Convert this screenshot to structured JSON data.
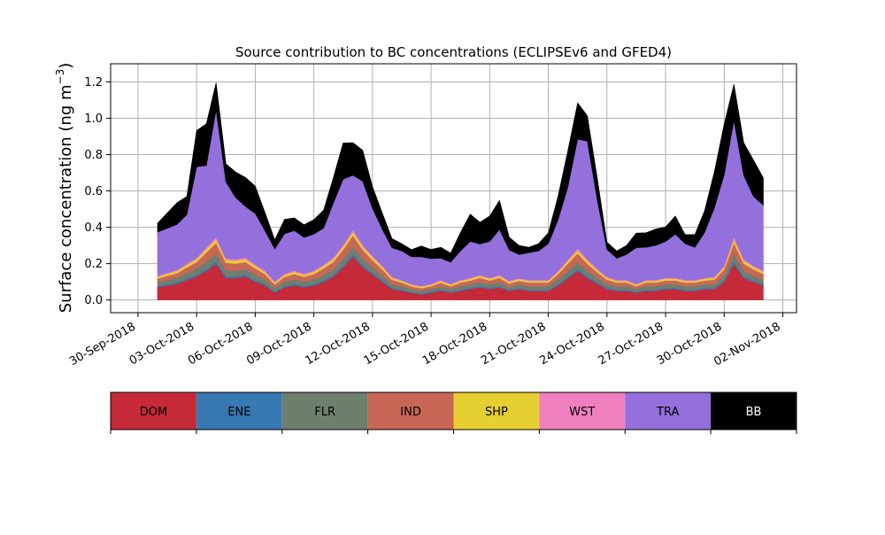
{
  "chart_data": {
    "type": "area",
    "title": "Source contribution to BC concentrations (ECLIPSEv6 and GFED4)",
    "xlabel": "",
    "ylabel": "Surface concentration (ng m",
    "ylabel_superscript": "−3",
    "ylabel_close": ")",
    "ylim": [
      -0.07,
      1.3
    ],
    "xlim": [
      -2.4,
      32.7
    ],
    "x_ticks": [
      {
        "value": -1,
        "label": "30-Sep-2018"
      },
      {
        "value": 2,
        "label": "03-Oct-2018"
      },
      {
        "value": 5,
        "label": "06-Oct-2018"
      },
      {
        "value": 8,
        "label": "09-Oct-2018"
      },
      {
        "value": 11,
        "label": "12-Oct-2018"
      },
      {
        "value": 14,
        "label": "15-Oct-2018"
      },
      {
        "value": 17,
        "label": "18-Oct-2018"
      },
      {
        "value": 20,
        "label": "21-Oct-2018"
      },
      {
        "value": 23,
        "label": "24-Oct-2018"
      },
      {
        "value": 26,
        "label": "27-Oct-2018"
      },
      {
        "value": 29,
        "label": "30-Oct-2018"
      },
      {
        "value": 32,
        "label": "02-Nov-2018"
      }
    ],
    "y_ticks": [
      {
        "value": 0.0,
        "label": "0.0"
      },
      {
        "value": 0.2,
        "label": "0.2"
      },
      {
        "value": 0.4,
        "label": "0.4"
      },
      {
        "value": 0.6,
        "label": "0.6"
      },
      {
        "value": 0.8,
        "label": "0.8"
      },
      {
        "value": 1.0,
        "label": "1.0"
      },
      {
        "value": 1.2,
        "label": "1.2"
      }
    ],
    "grid": true,
    "x_unit": "days since 01-Oct-2018",
    "x": [
      0,
      1,
      1.5,
      2,
      2.5,
      3,
      3.5,
      4,
      4.5,
      5,
      5.5,
      6,
      6.5,
      7,
      7.5,
      8,
      8.5,
      9,
      9.5,
      10,
      10.5,
      11,
      11.5,
      12,
      12.5,
      13,
      13.5,
      14,
      14.5,
      15,
      15.5,
      16,
      16.5,
      17,
      17.5,
      18,
      18.5,
      19,
      19.5,
      20,
      20.5,
      21,
      21.5,
      22,
      22.5,
      23,
      23.5,
      24,
      24.5,
      25,
      25.5,
      26,
      26.5,
      27,
      27.5,
      28,
      28.5,
      29,
      29.5,
      30,
      30.5,
      31
    ],
    "series": [
      {
        "name": "DOM",
        "color": "#c62a38",
        "values": [
          0.07,
          0.09,
          0.11,
          0.13,
          0.16,
          0.2,
          0.12,
          0.12,
          0.13,
          0.1,
          0.08,
          0.04,
          0.07,
          0.08,
          0.07,
          0.08,
          0.1,
          0.13,
          0.18,
          0.24,
          0.18,
          0.14,
          0.1,
          0.06,
          0.05,
          0.04,
          0.03,
          0.04,
          0.05,
          0.04,
          0.05,
          0.06,
          0.07,
          0.06,
          0.07,
          0.05,
          0.06,
          0.05,
          0.05,
          0.05,
          0.08,
          0.12,
          0.16,
          0.12,
          0.09,
          0.06,
          0.05,
          0.05,
          0.04,
          0.05,
          0.05,
          0.06,
          0.06,
          0.05,
          0.05,
          0.06,
          0.06,
          0.1,
          0.2,
          0.12,
          0.1,
          0.08
        ]
      },
      {
        "name": "ENE",
        "color": "#3878b3",
        "values": [
          0.008,
          0.008,
          0.009,
          0.01,
          0.012,
          0.014,
          0.01,
          0.01,
          0.01,
          0.009,
          0.008,
          0.006,
          0.007,
          0.008,
          0.007,
          0.008,
          0.009,
          0.01,
          0.012,
          0.014,
          0.012,
          0.01,
          0.009,
          0.007,
          0.006,
          0.005,
          0.005,
          0.006,
          0.006,
          0.006,
          0.006,
          0.007,
          0.007,
          0.007,
          0.007,
          0.006,
          0.006,
          0.006,
          0.006,
          0.006,
          0.008,
          0.01,
          0.012,
          0.01,
          0.008,
          0.007,
          0.006,
          0.006,
          0.006,
          0.006,
          0.006,
          0.007,
          0.007,
          0.006,
          0.006,
          0.007,
          0.007,
          0.009,
          0.014,
          0.01,
          0.009,
          0.008
        ]
      },
      {
        "name": "FLR",
        "color": "#6f7f6e",
        "values": [
          0.02,
          0.025,
          0.03,
          0.035,
          0.04,
          0.04,
          0.035,
          0.03,
          0.03,
          0.03,
          0.025,
          0.02,
          0.025,
          0.025,
          0.025,
          0.025,
          0.03,
          0.03,
          0.035,
          0.04,
          0.035,
          0.03,
          0.025,
          0.02,
          0.02,
          0.015,
          0.015,
          0.015,
          0.02,
          0.015,
          0.02,
          0.02,
          0.02,
          0.02,
          0.02,
          0.015,
          0.02,
          0.02,
          0.02,
          0.02,
          0.025,
          0.03,
          0.035,
          0.03,
          0.025,
          0.02,
          0.02,
          0.02,
          0.015,
          0.02,
          0.02,
          0.02,
          0.02,
          0.02,
          0.02,
          0.02,
          0.02,
          0.025,
          0.04,
          0.03,
          0.025,
          0.025
        ]
      },
      {
        "name": "IND",
        "color": "#c96757",
        "values": [
          0.02,
          0.025,
          0.03,
          0.035,
          0.05,
          0.06,
          0.04,
          0.04,
          0.04,
          0.035,
          0.03,
          0.02,
          0.025,
          0.03,
          0.025,
          0.03,
          0.035,
          0.04,
          0.05,
          0.06,
          0.05,
          0.04,
          0.035,
          0.025,
          0.02,
          0.015,
          0.015,
          0.015,
          0.02,
          0.015,
          0.02,
          0.02,
          0.025,
          0.02,
          0.025,
          0.02,
          0.02,
          0.02,
          0.02,
          0.02,
          0.03,
          0.04,
          0.05,
          0.04,
          0.03,
          0.025,
          0.02,
          0.02,
          0.015,
          0.02,
          0.02,
          0.02,
          0.02,
          0.02,
          0.02,
          0.02,
          0.025,
          0.035,
          0.06,
          0.04,
          0.035,
          0.03
        ]
      },
      {
        "name": "SHP",
        "color": "#e6cf31",
        "values": [
          0.01,
          0.012,
          0.014,
          0.015,
          0.018,
          0.02,
          0.015,
          0.015,
          0.015,
          0.014,
          0.012,
          0.01,
          0.011,
          0.012,
          0.011,
          0.012,
          0.013,
          0.015,
          0.017,
          0.02,
          0.017,
          0.015,
          0.013,
          0.01,
          0.009,
          0.008,
          0.008,
          0.008,
          0.009,
          0.008,
          0.009,
          0.01,
          0.01,
          0.01,
          0.01,
          0.009,
          0.009,
          0.009,
          0.009,
          0.009,
          0.011,
          0.014,
          0.016,
          0.014,
          0.012,
          0.01,
          0.009,
          0.009,
          0.008,
          0.009,
          0.009,
          0.01,
          0.01,
          0.009,
          0.009,
          0.01,
          0.01,
          0.012,
          0.02,
          0.015,
          0.013,
          0.012
        ]
      },
      {
        "name": "WST",
        "color": "#f07fbe",
        "values": [
          0.005,
          0.006,
          0.007,
          0.008,
          0.01,
          0.012,
          0.009,
          0.009,
          0.009,
          0.008,
          0.007,
          0.005,
          0.006,
          0.007,
          0.006,
          0.007,
          0.008,
          0.009,
          0.01,
          0.012,
          0.01,
          0.009,
          0.008,
          0.006,
          0.005,
          0.004,
          0.004,
          0.004,
          0.005,
          0.004,
          0.005,
          0.005,
          0.006,
          0.005,
          0.006,
          0.005,
          0.005,
          0.005,
          0.005,
          0.005,
          0.007,
          0.009,
          0.012,
          0.01,
          0.008,
          0.006,
          0.005,
          0.005,
          0.004,
          0.005,
          0.005,
          0.005,
          0.005,
          0.005,
          0.005,
          0.005,
          0.006,
          0.008,
          0.014,
          0.01,
          0.008,
          0.007
        ]
      },
      {
        "name": "TRA",
        "color": "#9370db",
        "values": [
          0.24,
          0.25,
          0.27,
          0.5,
          0.45,
          0.7,
          0.42,
          0.34,
          0.28,
          0.28,
          0.22,
          0.18,
          0.22,
          0.22,
          0.2,
          0.2,
          0.2,
          0.3,
          0.36,
          0.3,
          0.35,
          0.26,
          0.2,
          0.16,
          0.16,
          0.15,
          0.16,
          0.14,
          0.12,
          0.12,
          0.16,
          0.2,
          0.17,
          0.2,
          0.25,
          0.17,
          0.13,
          0.15,
          0.16,
          0.2,
          0.28,
          0.4,
          0.6,
          0.65,
          0.38,
          0.15,
          0.12,
          0.14,
          0.2,
          0.18,
          0.19,
          0.2,
          0.24,
          0.2,
          0.18,
          0.25,
          0.38,
          0.5,
          0.64,
          0.46,
          0.38,
          0.36
        ]
      },
      {
        "name": "BB",
        "color": "#000000",
        "values": [
          0.05,
          0.12,
          0.1,
          0.2,
          0.23,
          0.15,
          0.1,
          0.14,
          0.16,
          0.15,
          0.1,
          0.05,
          0.08,
          0.07,
          0.07,
          0.08,
          0.1,
          0.14,
          0.2,
          0.18,
          0.17,
          0.12,
          0.09,
          0.05,
          0.04,
          0.04,
          0.06,
          0.05,
          0.06,
          0.05,
          0.1,
          0.15,
          0.12,
          0.14,
          0.16,
          0.07,
          0.05,
          0.03,
          0.04,
          0.06,
          0.13,
          0.2,
          0.2,
          0.14,
          0.12,
          0.04,
          0.04,
          0.05,
          0.08,
          0.08,
          0.09,
          0.08,
          0.1,
          0.05,
          0.07,
          0.12,
          0.2,
          0.28,
          0.2,
          0.18,
          0.2,
          0.15
        ]
      }
    ],
    "legend": {
      "placement": "below",
      "entries": [
        {
          "name": "DOM",
          "color": "#c62a38",
          "text_color": "#000000"
        },
        {
          "name": "ENE",
          "color": "#3878b3",
          "text_color": "#000000"
        },
        {
          "name": "FLR",
          "color": "#6f7f6e",
          "text_color": "#000000"
        },
        {
          "name": "IND",
          "color": "#c96757",
          "text_color": "#000000"
        },
        {
          "name": "SHP",
          "color": "#e6cf31",
          "text_color": "#000000"
        },
        {
          "name": "WST",
          "color": "#f07fbe",
          "text_color": "#000000"
        },
        {
          "name": "TRA",
          "color": "#9370db",
          "text_color": "#000000"
        },
        {
          "name": "BB",
          "color": "#000000",
          "text_color": "#ffffff"
        }
      ]
    }
  }
}
